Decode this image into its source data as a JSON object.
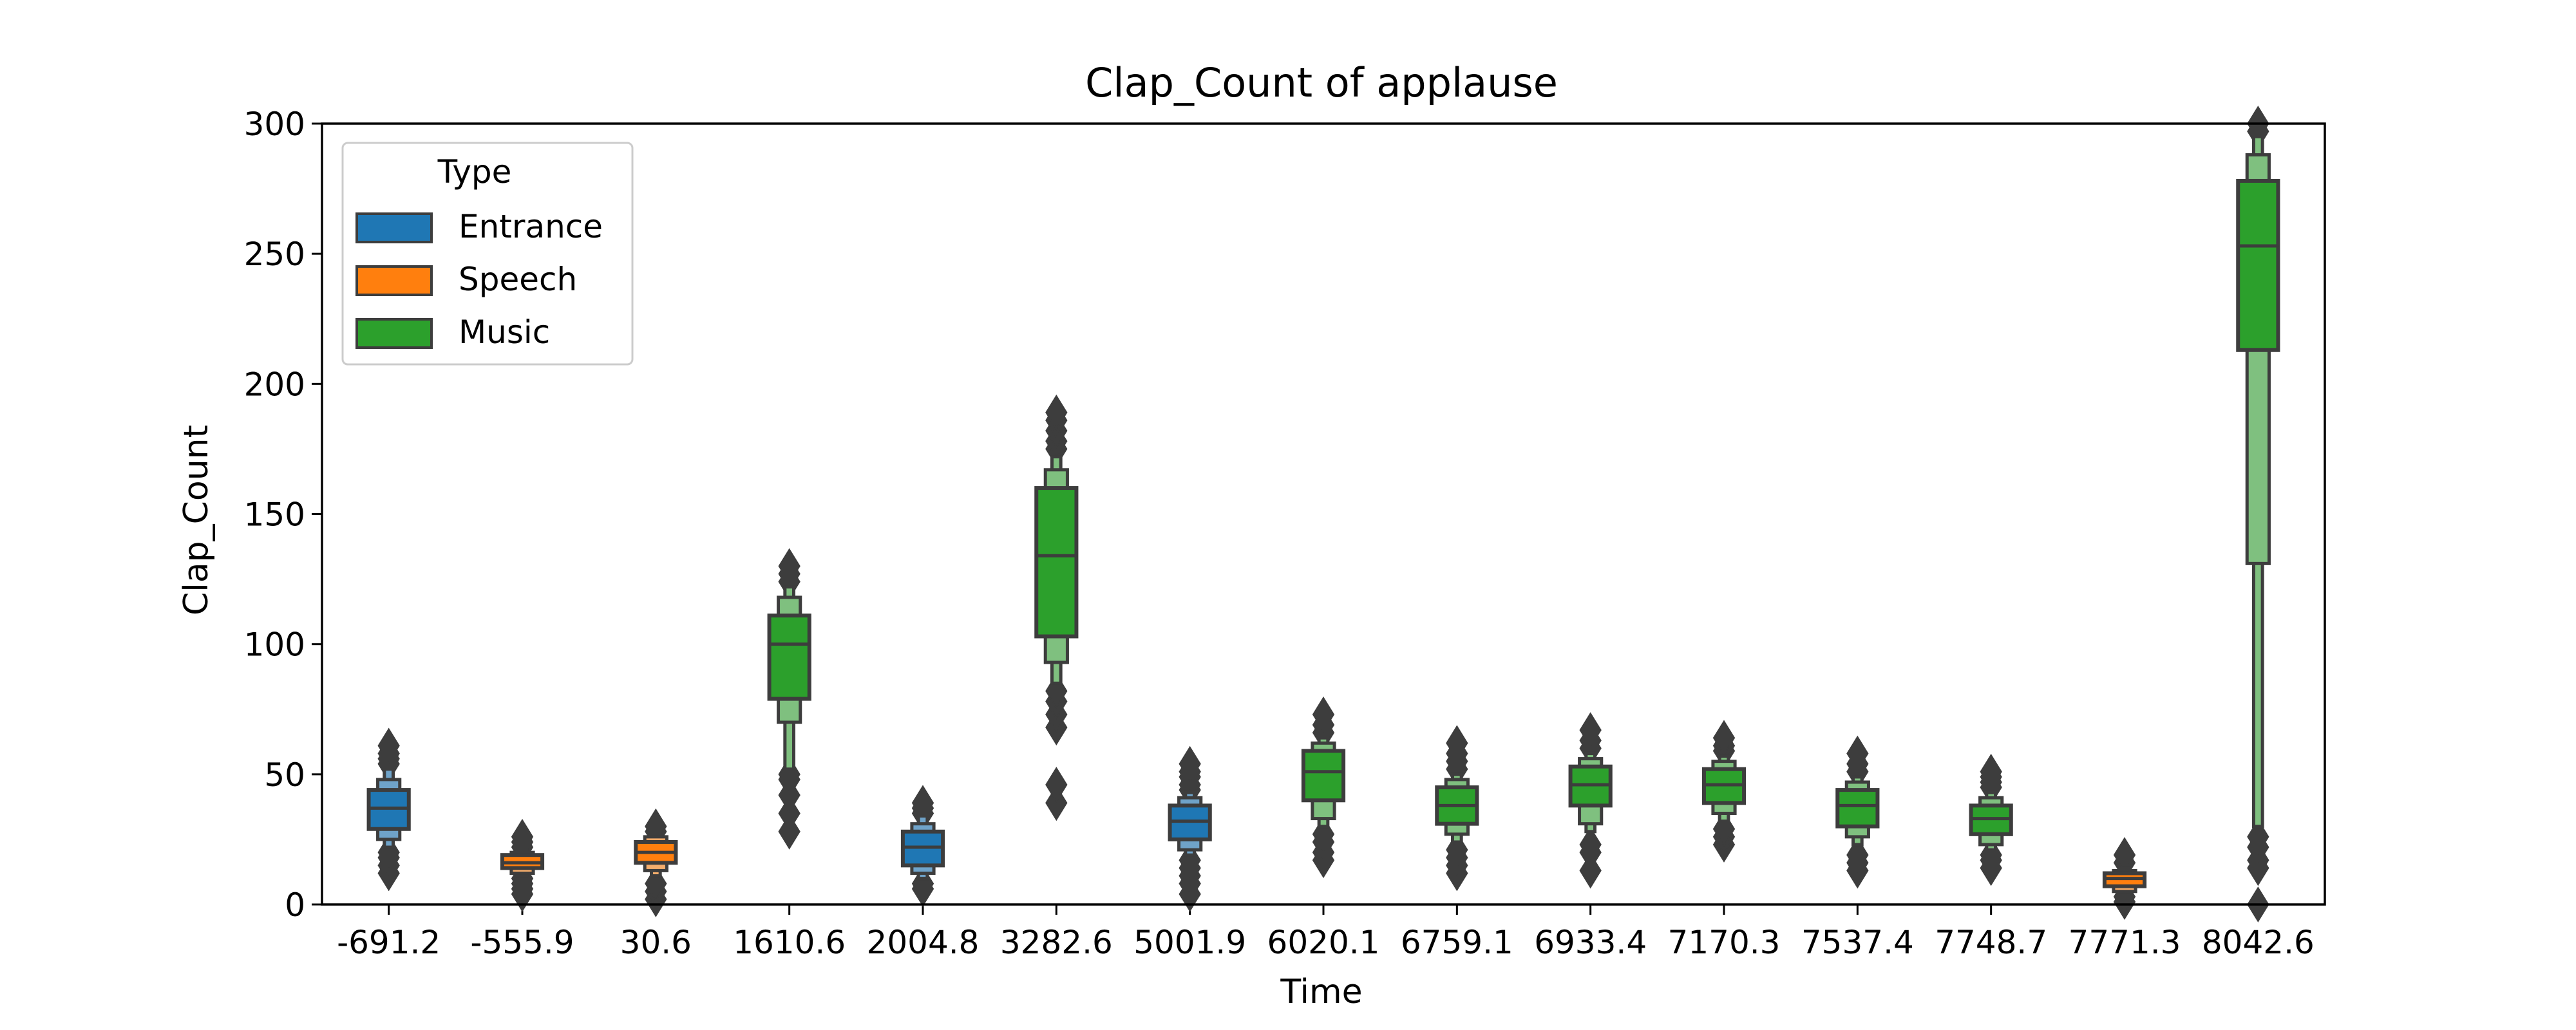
{
  "chart_data": {
    "type": "boxen",
    "title": "Clap_Count of applause",
    "xlabel": "Time",
    "ylabel": "Clap_Count",
    "ylim": [
      0,
      300
    ],
    "yticks": [
      0,
      50,
      100,
      150,
      200,
      250,
      300
    ],
    "categories": [
      "-691.2",
      "-555.9",
      "30.6",
      "1610.6",
      "2004.8",
      "3282.6",
      "5001.9",
      "6020.1",
      "6759.1",
      "6933.4",
      "7170.3",
      "7537.4",
      "7748.7",
      "7771.3",
      "8042.6"
    ],
    "tick_labels": [
      "-691.2",
      "-555.9",
      "30.6",
      "1610.6",
      "2004.8",
      "3282.6",
      "5001.9",
      "6020.1",
      "6759.1",
      "6933.4",
      "7170.3",
      "7537.4",
      "7748.7",
      "7771.3",
      "8042.6"
    ],
    "legend": {
      "title": "Type",
      "placement": "upper-left"
    },
    "series": [
      {
        "name": "Entrance",
        "color": "#1f77b4",
        "shade": "#6fa3c9"
      },
      {
        "name": "Speech",
        "color": "#ff7f0e",
        "shade": "#f4ad6c"
      },
      {
        "name": "Music",
        "color": "#2ca02c",
        "shade": "#7fc07f"
      }
    ],
    "boxes": [
      {
        "category": "-691.2",
        "series": "Entrance",
        "median": 37,
        "q1": 29,
        "q3": 44,
        "levels": [
          [
            25,
            48
          ],
          [
            22,
            52
          ]
        ],
        "outliers": [
          12,
          15,
          18,
          20,
          54,
          56,
          58,
          61
        ]
      },
      {
        "category": "-555.9",
        "series": "Speech",
        "median": 16,
        "q1": 14,
        "q3": 19,
        "levels": [
          [
            12,
            20
          ],
          [
            11,
            21
          ]
        ],
        "outliers": [
          4,
          6,
          8,
          10,
          22,
          24,
          26
        ]
      },
      {
        "category": "30.6",
        "series": "Speech",
        "median": 20,
        "q1": 16,
        "q3": 24,
        "levels": [
          [
            13,
            26
          ],
          [
            11,
            27
          ]
        ],
        "outliers": [
          2,
          5,
          8,
          28,
          30
        ]
      },
      {
        "category": "1610.6",
        "series": "Music",
        "median": 100,
        "q1": 79,
        "q3": 111,
        "levels": [
          [
            70,
            118
          ],
          [
            52,
            122
          ]
        ],
        "outliers": [
          28,
          35,
          42,
          48,
          50,
          124,
          127,
          130
        ]
      },
      {
        "category": "2004.8",
        "series": "Entrance",
        "median": 22,
        "q1": 15,
        "q3": 28,
        "levels": [
          [
            12,
            31
          ],
          [
            10,
            34
          ]
        ],
        "outliers": [
          6,
          8,
          35,
          37,
          39
        ]
      },
      {
        "category": "3282.6",
        "series": "Music",
        "median": 134,
        "q1": 103,
        "q3": 160,
        "levels": [
          [
            93,
            167
          ],
          [
            85,
            172
          ]
        ],
        "outliers": [
          39,
          46,
          68,
          73,
          78,
          82,
          175,
          178,
          182,
          186,
          189
        ]
      },
      {
        "category": "5001.9",
        "series": "Entrance",
        "median": 32,
        "q1": 25,
        "q3": 38,
        "levels": [
          [
            21,
            41
          ],
          [
            19,
            43
          ]
        ],
        "outliers": [
          4,
          8,
          11,
          14,
          17,
          44,
          46,
          49,
          51,
          54
        ]
      },
      {
        "category": "6020.1",
        "series": "Music",
        "median": 51,
        "q1": 40,
        "q3": 59,
        "levels": [
          [
            33,
            62
          ],
          [
            30,
            64
          ]
        ],
        "outliers": [
          17,
          20,
          24,
          27,
          66,
          69,
          73
        ]
      },
      {
        "category": "6759.1",
        "series": "Music",
        "median": 38,
        "q1": 31,
        "q3": 45,
        "levels": [
          [
            27,
            48
          ],
          [
            24,
            50
          ]
        ],
        "outliers": [
          12,
          15,
          18,
          21,
          52,
          55,
          58,
          62
        ]
      },
      {
        "category": "6933.4",
        "series": "Music",
        "median": 46,
        "q1": 38,
        "q3": 53,
        "levels": [
          [
            31,
            56
          ],
          [
            28,
            58
          ]
        ],
        "outliers": [
          13,
          20,
          23,
          60,
          63,
          67
        ]
      },
      {
        "category": "7170.3",
        "series": "Music",
        "median": 46,
        "q1": 39,
        "q3": 52,
        "levels": [
          [
            35,
            55
          ],
          [
            32,
            57
          ]
        ],
        "outliers": [
          23,
          26,
          29,
          59,
          61,
          64
        ]
      },
      {
        "category": "7537.4",
        "series": "Music",
        "median": 38,
        "q1": 30,
        "q3": 44,
        "levels": [
          [
            26,
            47
          ],
          [
            23,
            49
          ]
        ],
        "outliers": [
          13,
          16,
          19,
          51,
          54,
          58
        ]
      },
      {
        "category": "7748.7",
        "series": "Music",
        "median": 33,
        "q1": 27,
        "q3": 38,
        "levels": [
          [
            23,
            41
          ],
          [
            21,
            43
          ]
        ],
        "outliers": [
          14,
          17,
          19,
          45,
          47,
          49,
          51
        ]
      },
      {
        "category": "7771.3",
        "series": "Speech",
        "median": 10,
        "q1": 7,
        "q3": 12,
        "levels": [
          [
            5,
            13
          ],
          [
            4,
            14
          ]
        ],
        "outliers": [
          1,
          3,
          16,
          19
        ]
      },
      {
        "category": "8042.6",
        "series": "Music",
        "median": 253,
        "q1": 213,
        "q3": 278,
        "levels": [
          [
            131,
            288
          ],
          [
            30,
            295
          ]
        ],
        "outliers": [
          0,
          14,
          17,
          22,
          26,
          297,
          300
        ]
      }
    ]
  }
}
